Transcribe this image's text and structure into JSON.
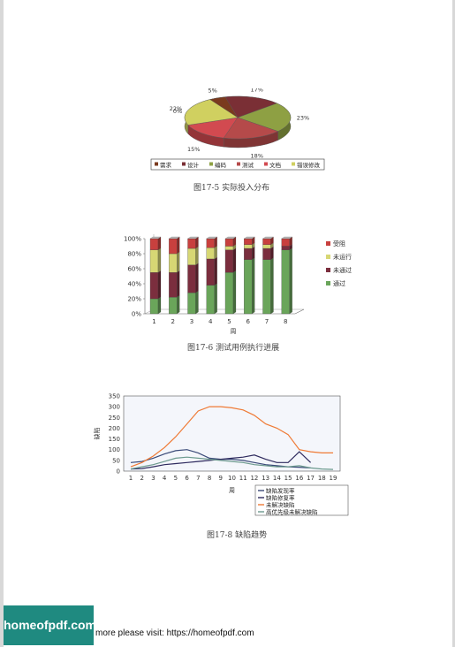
{
  "figures": {
    "pie": {
      "caption": "图17-5 实际投入分布",
      "chart_data": {
        "type": "pie",
        "categories": [
          "需求",
          "设计",
          "编码",
          "测试",
          "文档",
          "错误修改"
        ],
        "values": [
          5,
          17,
          23,
          18,
          15,
          22
        ],
        "value_labels": [
          "5%",
          "17%",
          "23%",
          "18%",
          "15%",
          "22%"
        ],
        "extra_label": "0%",
        "legend_position": "bottom",
        "colors": [
          "#7a3a1e",
          "#7a2f35",
          "#8ea043",
          "#b54a4a",
          "#d24a50",
          "#d0d060"
        ]
      }
    },
    "bar": {
      "caption": "图17-6 测试用例执行进展",
      "chart_data": {
        "type": "bar",
        "stacked": true,
        "categories": [
          "1",
          "2",
          "3",
          "4",
          "5",
          "6",
          "7",
          "8"
        ],
        "xlabel": "周",
        "ylabel": "",
        "ylim": [
          0,
          100
        ],
        "yticks": [
          "0%",
          "20%",
          "40%",
          "60%",
          "80%",
          "100%"
        ],
        "legend_position": "right",
        "series": [
          {
            "name": "通过",
            "color": "#6aa55a",
            "values": [
              20,
              22,
              28,
              38,
              55,
              72,
              72,
              85
            ]
          },
          {
            "name": "未通过",
            "color": "#7b2e3e",
            "values": [
              35,
              33,
              37,
              35,
              30,
              15,
              15,
              5
            ]
          },
          {
            "name": "未运行",
            "color": "#d7d774",
            "values": [
              30,
              25,
              22,
              15,
              5,
              5,
              5,
              0
            ]
          },
          {
            "name": "受阻",
            "color": "#c8403e",
            "values": [
              15,
              20,
              13,
              12,
              10,
              8,
              8,
              10
            ]
          }
        ]
      }
    },
    "line": {
      "caption": "图17-8 缺陷趋势",
      "chart_data": {
        "type": "line",
        "x": [
          1,
          2,
          3,
          4,
          5,
          6,
          7,
          8,
          9,
          10,
          11,
          12,
          13,
          14,
          15,
          16,
          17,
          18,
          19
        ],
        "xlabel": "周",
        "ylabel": "缺陷",
        "ylim": [
          0,
          350
        ],
        "yticks": [
          0,
          50,
          100,
          150,
          200,
          250,
          300,
          350
        ],
        "legend_position": "bottom-right",
        "series": [
          {
            "name": "缺陷发现率",
            "color": "#3a4a78",
            "values": [
              40,
              45,
              60,
              80,
              95,
              100,
              85,
              60,
              55,
              55,
              50,
              40,
              30,
              25,
              20,
              18,
              15,
              null,
              null
            ]
          },
          {
            "name": "缺陷修复率",
            "color": "#2e2a5e",
            "values": [
              10,
              12,
              20,
              30,
              35,
              40,
              45,
              50,
              55,
              60,
              65,
              75,
              55,
              40,
              40,
              90,
              40,
              null,
              null
            ]
          },
          {
            "name": "未解决缺陷",
            "color": "#ef7a35",
            "values": [
              20,
              40,
              70,
              110,
              160,
              220,
              280,
              300,
              300,
              295,
              285,
              260,
              220,
              200,
              170,
              100,
              90,
              85,
              85
            ]
          },
          {
            "name": "高优先级未解决缺陷",
            "color": "#6c9a8e",
            "values": [
              10,
              20,
              30,
              45,
              60,
              65,
              60,
              55,
              50,
              45,
              40,
              30,
              25,
              20,
              20,
              25,
              15,
              10,
              8
            ]
          }
        ]
      }
    }
  },
  "footer": {
    "badge": "homeofpdf.com",
    "text": "more please visit: https://homeofpdf.com"
  }
}
